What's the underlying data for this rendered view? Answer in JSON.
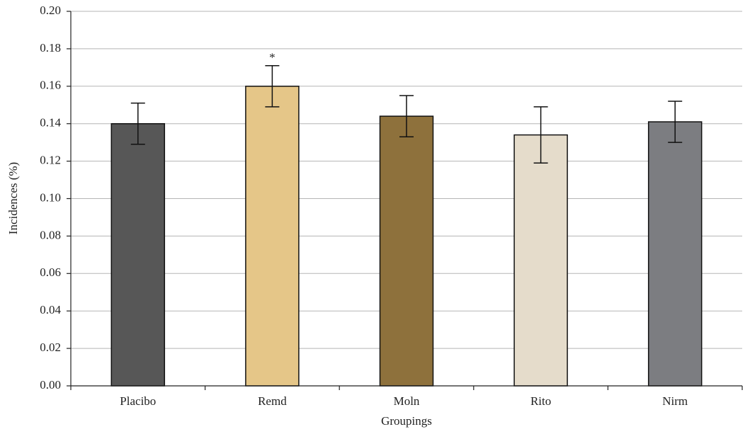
{
  "chart_data": {
    "type": "bar",
    "xlabel": "Groupings",
    "ylabel": "Incidences (%)",
    "categories": [
      "Placibo",
      "Remd",
      "Moln",
      "Rito",
      "Nirm"
    ],
    "values": [
      0.14,
      0.16,
      0.144,
      0.134,
      0.141
    ],
    "errors": [
      0.011,
      0.011,
      0.011,
      0.015,
      0.011
    ],
    "colors": [
      "#575757",
      "#e5c688",
      "#8e713c",
      "#e5dccb",
      "#7c7d81"
    ],
    "significance_labels": [
      null,
      "*",
      null,
      null,
      null
    ],
    "ylim": [
      0,
      0.2
    ],
    "yticks": [
      {
        "value": 0,
        "label": "0.00"
      },
      {
        "value": 0.02,
        "label": "0.02"
      },
      {
        "value": 0.04,
        "label": "0.04"
      },
      {
        "value": 0.06,
        "label": "0.06"
      },
      {
        "value": 0.08,
        "label": "0.08"
      },
      {
        "value": 0.1,
        "label": "0.10"
      },
      {
        "value": 0.12,
        "label": "0.12"
      },
      {
        "value": 0.14,
        "label": "0.14"
      },
      {
        "value": 0.16,
        "label": "0.16"
      },
      {
        "value": 0.18,
        "label": "0.18"
      },
      {
        "value": 0.2,
        "label": "0.20"
      }
    ],
    "grid": true
  }
}
